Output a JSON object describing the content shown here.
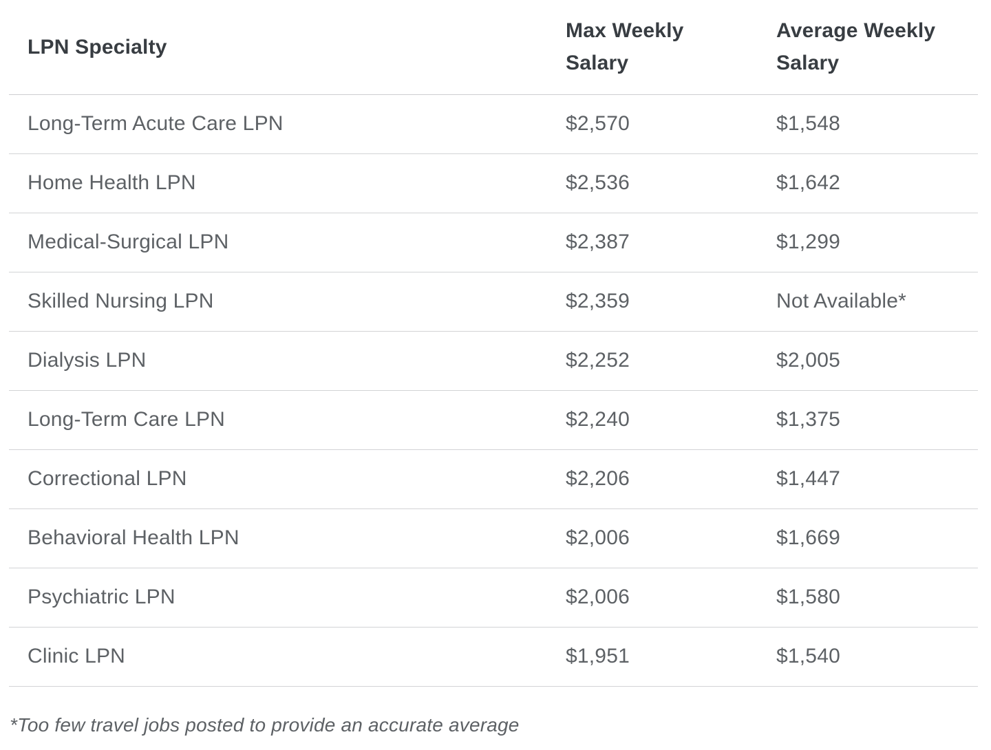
{
  "colors": {
    "background": "#ffffff",
    "header_text": "#383d42",
    "body_text": "#5d6165",
    "divider": "#d2d3d5"
  },
  "table": {
    "headers": {
      "specialty": "LPN Specialty",
      "max_weekly": "Max Weekly\nSalary",
      "avg_weekly": "Average Weekly\nSalary"
    },
    "rows": [
      {
        "specialty": "Long-Term Acute Care LPN",
        "max_weekly": "$2,570",
        "avg_weekly": "$1,548"
      },
      {
        "specialty": "Home Health LPN",
        "max_weekly": "$2,536",
        "avg_weekly": "$1,642"
      },
      {
        "specialty": "Medical-Surgical LPN",
        "max_weekly": "$2,387",
        "avg_weekly": "$1,299"
      },
      {
        "specialty": "Skilled Nursing LPN",
        "max_weekly": "$2,359",
        "avg_weekly": "Not Available*"
      },
      {
        "specialty": "Dialysis LPN",
        "max_weekly": "$2,252",
        "avg_weekly": "$2,005"
      },
      {
        "specialty": "Long-Term Care LPN",
        "max_weekly": "$2,240",
        "avg_weekly": "$1,375"
      },
      {
        "specialty": "Correctional LPN",
        "max_weekly": "$2,206",
        "avg_weekly": "$1,447"
      },
      {
        "specialty": "Behavioral Health LPN",
        "max_weekly": "$2,006",
        "avg_weekly": "$1,669"
      },
      {
        "specialty": "Psychiatric LPN",
        "max_weekly": "$2,006",
        "avg_weekly": "$1,580"
      },
      {
        "specialty": "Clinic LPN",
        "max_weekly": "$1,951",
        "avg_weekly": "$1,540"
      }
    ]
  },
  "footnote": "*Too few travel jobs posted to provide an accurate average",
  "chart_data": {
    "type": "table",
    "title": "",
    "columns": [
      "LPN Specialty",
      "Max Weekly Salary",
      "Average Weekly Salary"
    ],
    "rows": [
      [
        "Long-Term Acute Care LPN",
        "$2,570",
        "$1,548"
      ],
      [
        "Home Health LPN",
        "$2,536",
        "$1,642"
      ],
      [
        "Medical-Surgical LPN",
        "$2,387",
        "$1,299"
      ],
      [
        "Skilled Nursing LPN",
        "$2,359",
        "Not Available*"
      ],
      [
        "Dialysis LPN",
        "$2,252",
        "$2,005"
      ],
      [
        "Long-Term Care LPN",
        "$2,240",
        "$1,375"
      ],
      [
        "Correctional LPN",
        "$2,206",
        "$1,447"
      ],
      [
        "Behavioral Health LPN",
        "$2,006",
        "$1,669"
      ],
      [
        "Psychiatric LPN",
        "$2,006",
        "$1,580"
      ],
      [
        "Clinic LPN",
        "$1,951",
        "$1,540"
      ]
    ],
    "footnote": "*Too few travel jobs posted to provide an accurate average",
    "layout": {
      "grid": "horizontal-dividers-only",
      "header_style": "bold",
      "value_columns_numeric": true
    }
  }
}
